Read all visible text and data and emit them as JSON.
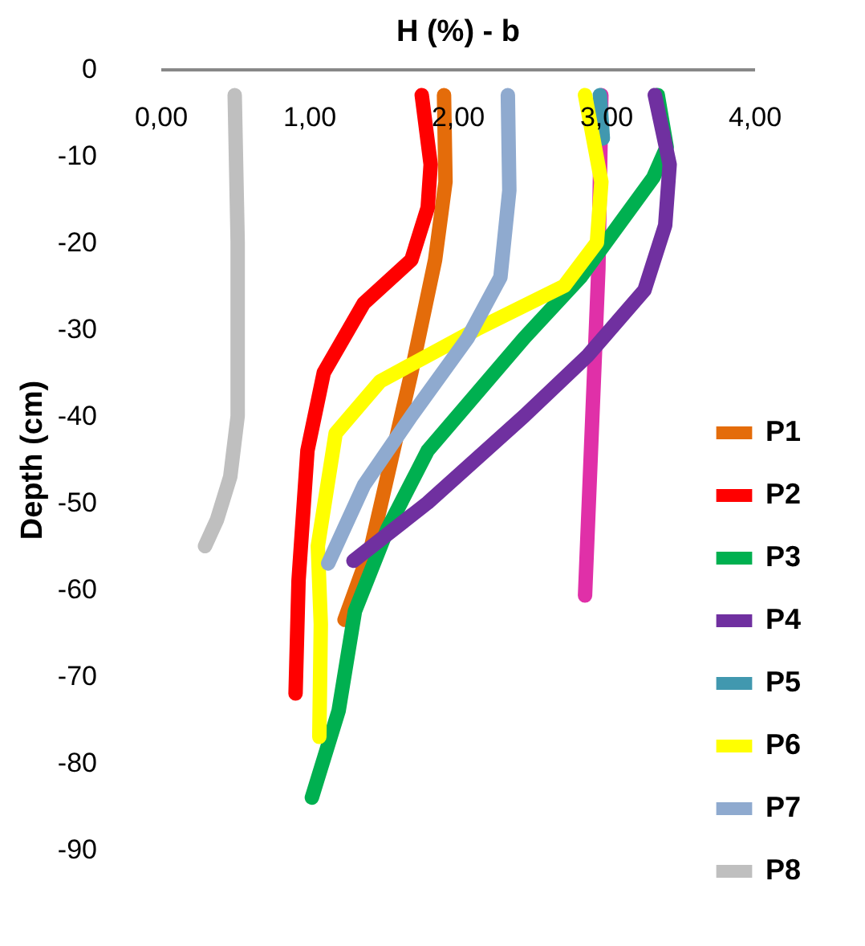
{
  "chart_data": {
    "type": "line",
    "xlabel": "H  (%) - b",
    "ylabel": "Depth (cm)",
    "xlim": [
      0,
      4
    ],
    "xticks": [
      {
        "value": 0,
        "label": "0,00"
      },
      {
        "value": 1,
        "label": "1,00"
      },
      {
        "value": 2,
        "label": "2,00"
      },
      {
        "value": 3,
        "label": "3,00"
      },
      {
        "value": 4,
        "label": "4,00"
      }
    ],
    "ylim": [
      -90,
      0
    ],
    "yticks": [
      0,
      -10,
      -20,
      -30,
      -40,
      -50,
      -60,
      -70,
      -80,
      -90
    ],
    "grid": false,
    "legend": "bottom right",
    "line_style": "solid",
    "series": [
      {
        "color": "#e030a8",
        "x": [
          2.97,
          2.95,
          2.86
        ],
        "values": [
          -3,
          -23,
          -60.7
        ]
      },
      {
        "name": "P1",
        "color": "#e46c0a",
        "x": [
          1.91,
          1.92,
          1.85,
          1.69,
          1.42,
          1.24
        ],
        "values": [
          -3,
          -13,
          -22,
          -35,
          -55,
          -63.5
        ]
      },
      {
        "name": "P2",
        "color": "#ff0000",
        "x": [
          1.76,
          1.82,
          1.8,
          1.69,
          1.37,
          1.1,
          0.99,
          0.93,
          0.91
        ],
        "values": [
          -3,
          -11,
          -16,
          -22,
          -27,
          -35,
          -44,
          -59,
          -72
        ]
      },
      {
        "name": "P3",
        "color": "#00b050",
        "x": [
          3.35,
          3.41,
          3.32,
          2.83,
          2.45,
          1.8,
          1.53,
          1.31,
          1.2,
          1.02
        ],
        "values": [
          -3,
          -9,
          -12.5,
          -24,
          -31,
          -44,
          -53,
          -62.5,
          -74,
          -84
        ]
      },
      {
        "name": "P4",
        "color": "#7030a0",
        "x": [
          3.33,
          3.43,
          3.4,
          3.26,
          2.88,
          2.45,
          1.8,
          1.3
        ],
        "values": [
          -3,
          -11,
          -18,
          -25.5,
          -33,
          -40,
          -50,
          -56.7
        ]
      },
      {
        "name": "P5",
        "color": "#4198af",
        "x": [
          2.96,
          2.98
        ],
        "values": [
          -3,
          -8
        ]
      },
      {
        "name": "P6",
        "color": "#ffff00",
        "x": [
          2.86,
          2.97,
          2.94,
          2.72,
          2.13,
          1.48,
          1.18,
          1.06,
          1.08,
          1.07
        ],
        "values": [
          -3,
          -13,
          -20,
          -25,
          -30,
          -36,
          -42,
          -55,
          -64,
          -77
        ]
      },
      {
        "name": "P7",
        "color": "#8faacf",
        "x": [
          2.34,
          2.35,
          2.29,
          2.07,
          1.69,
          1.37,
          1.13
        ],
        "values": [
          -3,
          -14,
          -24,
          -31,
          -40,
          -48,
          -57
        ]
      },
      {
        "name": "P8",
        "color": "#bfbfbf",
        "x": [
          0.5,
          0.52,
          0.52,
          0.47,
          0.38,
          0.3
        ],
        "values": [
          -3,
          -20,
          -40,
          -47,
          -52,
          -55
        ]
      }
    ]
  }
}
